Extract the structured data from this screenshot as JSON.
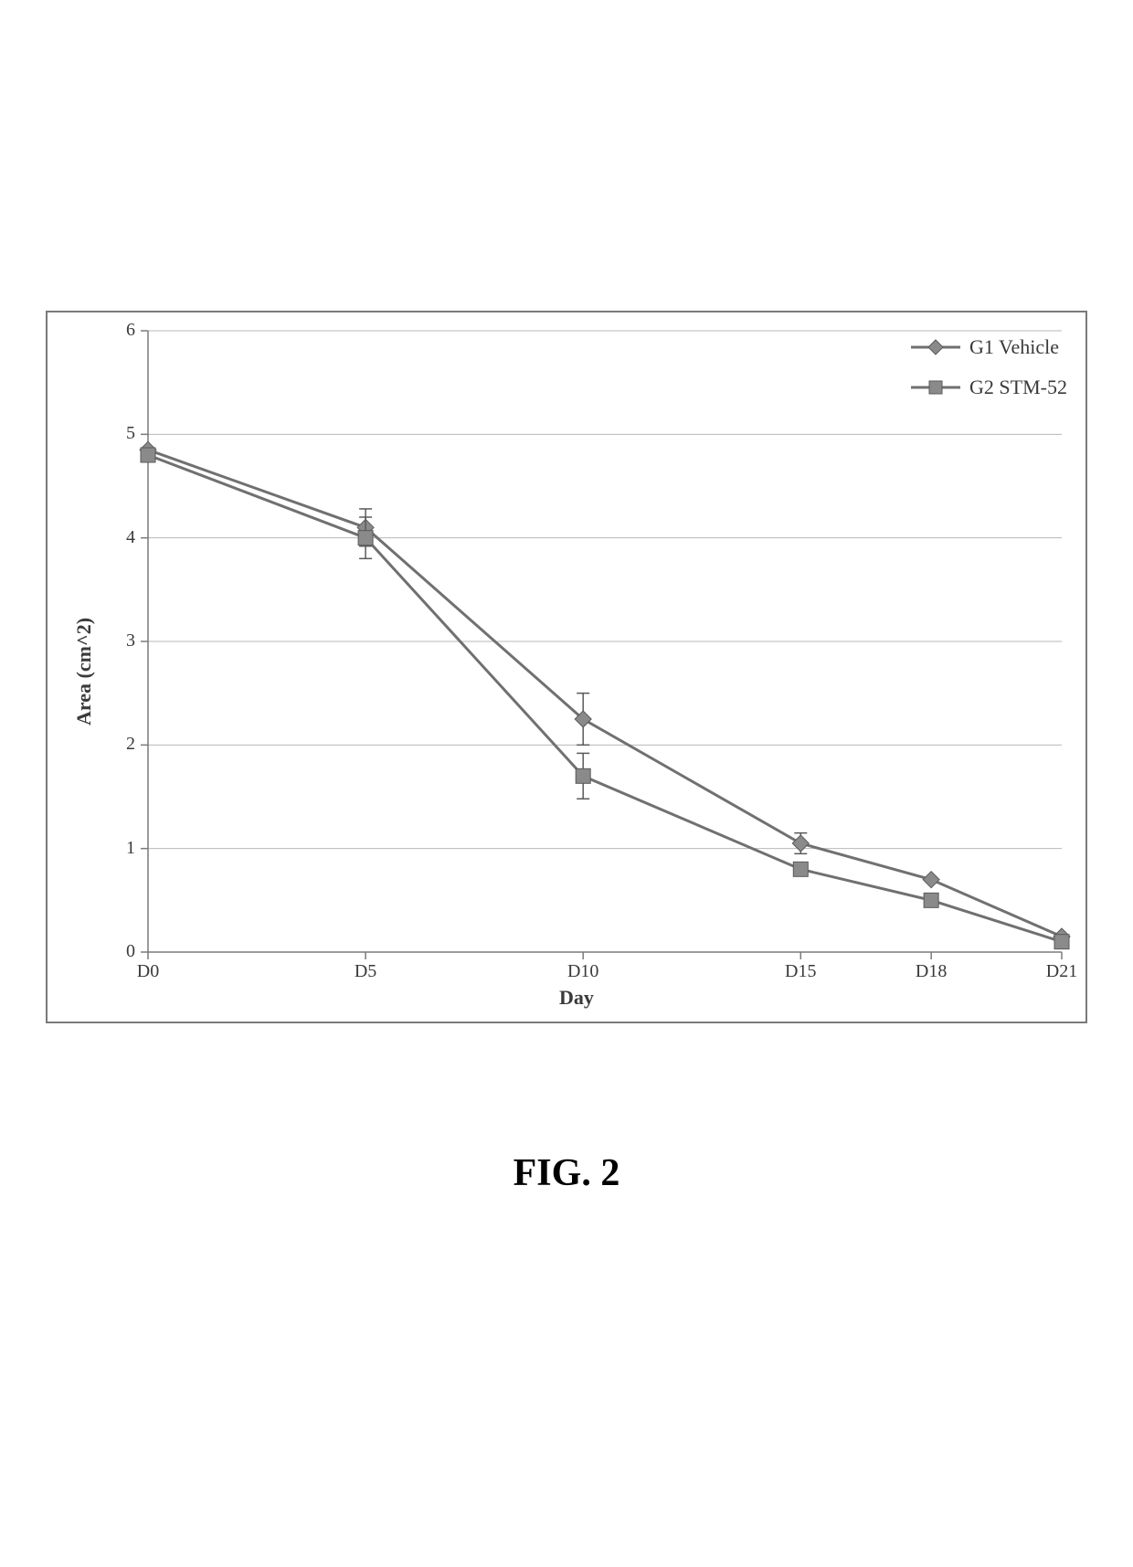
{
  "caption": "FIG. 2",
  "chart": {
    "type": "line",
    "background_color": "#ffffff",
    "border_color": "#7a7a7a",
    "plot_border_color": "#7a7a7a",
    "gridline_color": "#b8b8b8",
    "axis_color": "#7a7a7a",
    "tick_color": "#7a7a7a",
    "line_width": 3,
    "marker_size": 9,
    "errorbar_color": "#5a5a5a",
    "xlabel": "Day",
    "ylabel": "Area (cm^2)",
    "label_fontsize": 22,
    "label_fontweight": "bold",
    "tick_fontsize": 20,
    "x_categories": [
      "D0",
      "D5",
      "D10",
      "D15",
      "D18",
      "D21"
    ],
    "x_positions": [
      0,
      5,
      10,
      15,
      18,
      21
    ],
    "xlim": [
      0,
      21
    ],
    "ylim": [
      0,
      6
    ],
    "ytick_step": 1,
    "series": [
      {
        "name": "G1 Vehicle",
        "marker": "diamond",
        "color": "#707070",
        "marker_fill": "#8a8a8a",
        "y": [
          4.85,
          4.1,
          2.25,
          1.05,
          0.7,
          0.15
        ],
        "yerr": [
          0.0,
          0.18,
          0.25,
          0.1,
          0.0,
          0.0
        ]
      },
      {
        "name": "G2 STM-52",
        "marker": "square",
        "color": "#707070",
        "marker_fill": "#8a8a8a",
        "y": [
          4.8,
          4.0,
          1.7,
          0.8,
          0.5,
          0.1
        ],
        "yerr": [
          0.0,
          0.2,
          0.22,
          0.0,
          0.0,
          0.0
        ]
      }
    ],
    "legend": {
      "position": "top-right",
      "border_color": "none",
      "fontsize": 22
    }
  }
}
